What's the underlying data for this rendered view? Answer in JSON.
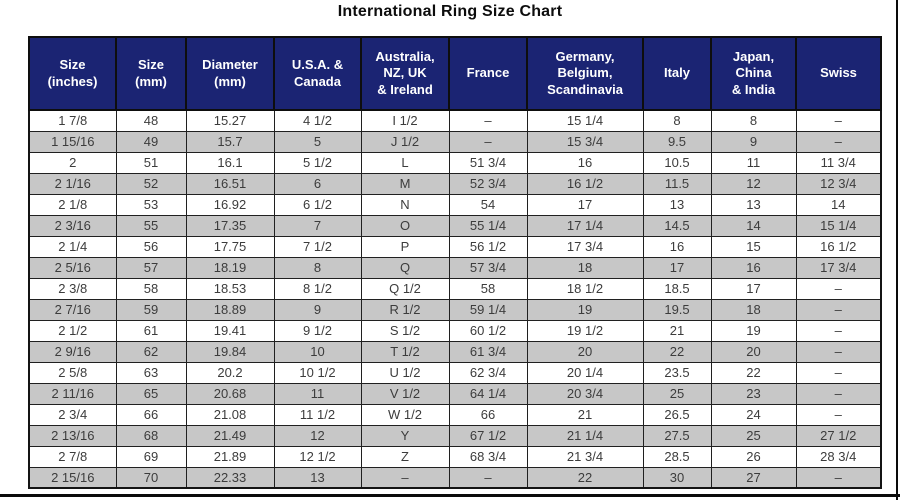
{
  "page": {
    "title": "International Ring Size Chart"
  },
  "colors": {
    "header_bg": "#1b2473",
    "header_text": "#ffffff",
    "row_alt_bg": "#c7c7c7",
    "body_text": "#3c3c3c",
    "frame": "#0a0a0a"
  },
  "chart_data": {
    "type": "table",
    "title": "International Ring Size Chart",
    "columns": [
      "Size\n(inches)",
      "Size\n(mm)",
      "Diameter\n(mm)",
      "U.S.A. &\nCanada",
      "Australia,\nNZ, UK\n& Ireland",
      "France",
      "Germany,\nBelgium,\nScandinavia",
      "Italy",
      "Japan,\nChina\n& India",
      "Swiss"
    ],
    "rows": [
      [
        "1 7/8",
        "48",
        "15.27",
        "4 1/2",
        "I 1/2",
        "–",
        "15 1/4",
        "8",
        "8",
        "–"
      ],
      [
        "1 15/16",
        "49",
        "15.7",
        "5",
        "J 1/2",
        "–",
        "15 3/4",
        "9.5",
        "9",
        "–"
      ],
      [
        "2",
        "51",
        "16.1",
        "5 1/2",
        "L",
        "51 3/4",
        "16",
        "10.5",
        "11",
        "11 3/4"
      ],
      [
        "2 1/16",
        "52",
        "16.51",
        "6",
        "M",
        "52 3/4",
        "16 1/2",
        "11.5",
        "12",
        "12 3/4"
      ],
      [
        "2 1/8",
        "53",
        "16.92",
        "6 1/2",
        "N",
        "54",
        "17",
        "13",
        "13",
        "14"
      ],
      [
        "2 3/16",
        "55",
        "17.35",
        "7",
        "O",
        "55 1/4",
        "17 1/4",
        "14.5",
        "14",
        "15 1/4"
      ],
      [
        "2 1/4",
        "56",
        "17.75",
        "7 1/2",
        "P",
        "56 1/2",
        "17 3/4",
        "16",
        "15",
        "16 1/2"
      ],
      [
        "2 5/16",
        "57",
        "18.19",
        "8",
        "Q",
        "57 3/4",
        "18",
        "17",
        "16",
        "17 3/4"
      ],
      [
        "2 3/8",
        "58",
        "18.53",
        "8 1/2",
        "Q 1/2",
        "58",
        "18 1/2",
        "18.5",
        "17",
        "–"
      ],
      [
        "2 7/16",
        "59",
        "18.89",
        "9",
        "R 1/2",
        "59 1/4",
        "19",
        "19.5",
        "18",
        "–"
      ],
      [
        "2 1/2",
        "61",
        "19.41",
        "9 1/2",
        "S 1/2",
        "60 1/2",
        "19 1/2",
        "21",
        "19",
        "–"
      ],
      [
        "2 9/16",
        "62",
        "19.84",
        "10",
        "T 1/2",
        "61 3/4",
        "20",
        "22",
        "20",
        "–"
      ],
      [
        "2 5/8",
        "63",
        "20.2",
        "10 1/2",
        "U 1/2",
        "62 3/4",
        "20 1/4",
        "23.5",
        "22",
        "–"
      ],
      [
        "2 11/16",
        "65",
        "20.68",
        "11",
        "V 1/2",
        "64 1/4",
        "20 3/4",
        "25",
        "23",
        "–"
      ],
      [
        "2 3/4",
        "66",
        "21.08",
        "11 1/2",
        "W 1/2",
        "66",
        "21",
        "26.5",
        "24",
        "–"
      ],
      [
        "2 13/16",
        "68",
        "21.49",
        "12",
        "Y",
        "67 1/2",
        "21 1/4",
        "27.5",
        "25",
        "27 1/2"
      ],
      [
        "2 7/8",
        "69",
        "21.89",
        "12 1/2",
        "Z",
        "68 3/4",
        "21 3/4",
        "28.5",
        "26",
        "28 3/4"
      ],
      [
        "2 15/16",
        "70",
        "22.33",
        "13",
        "–",
        "–",
        "22",
        "30",
        "27",
        "–"
      ]
    ]
  }
}
